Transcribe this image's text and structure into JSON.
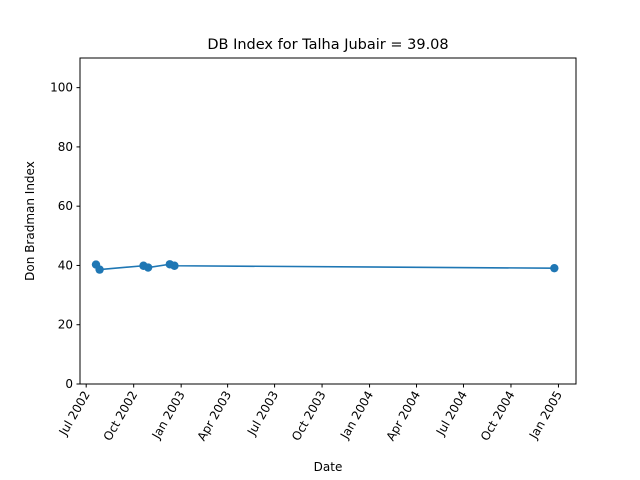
{
  "chart_data": {
    "type": "line",
    "title": "DB Index for Talha Jubair = 39.08",
    "xlabel": "Date",
    "ylabel": "Don Bradman Index",
    "ylim": [
      0,
      110
    ],
    "yticks": [
      0,
      20,
      40,
      60,
      80,
      100
    ],
    "xlim": [
      "2002-06-19",
      "2005-02-04"
    ],
    "xticks": [
      {
        "date": "2002-07-01",
        "label": "Jul 2002"
      },
      {
        "date": "2002-10-01",
        "label": "Oct 2002"
      },
      {
        "date": "2003-01-01",
        "label": "Jan 2003"
      },
      {
        "date": "2003-04-01",
        "label": "Apr 2003"
      },
      {
        "date": "2003-07-01",
        "label": "Jul 2003"
      },
      {
        "date": "2003-10-01",
        "label": "Oct 2003"
      },
      {
        "date": "2004-01-01",
        "label": "Jan 2004"
      },
      {
        "date": "2004-04-01",
        "label": "Apr 2004"
      },
      {
        "date": "2004-07-01",
        "label": "Jul 2004"
      },
      {
        "date": "2004-10-01",
        "label": "Oct 2004"
      },
      {
        "date": "2005-01-01",
        "label": "Jan 2005"
      }
    ],
    "grid": false,
    "colors": {
      "series": "#1f77b4"
    },
    "series": [
      {
        "points": [
          {
            "x": "2002-07-20",
            "y": 40.3
          },
          {
            "x": "2002-07-27",
            "y": 38.6
          },
          {
            "x": "2002-10-20",
            "y": 39.9
          },
          {
            "x": "2002-10-29",
            "y": 39.3
          },
          {
            "x": "2002-12-10",
            "y": 40.4
          },
          {
            "x": "2002-12-19",
            "y": 39.9
          },
          {
            "x": "2004-12-24",
            "y": 39.08
          }
        ]
      }
    ]
  }
}
